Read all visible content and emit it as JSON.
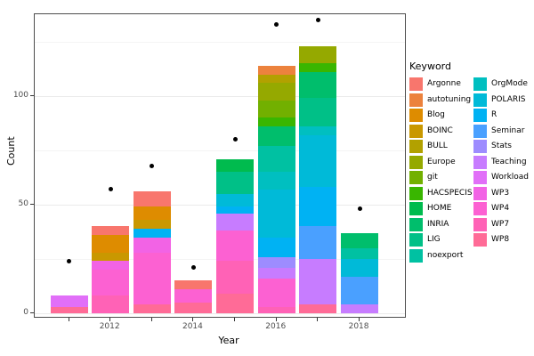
{
  "chart_data": {
    "type": "bar",
    "stacked": true,
    "title": "",
    "xlabel": "Year",
    "ylabel": "Count",
    "legend_title": "Keyword",
    "x_tick_labels": [
      "2012",
      "2014",
      "2016",
      "2018"
    ],
    "y_tick_labels": [
      "0",
      "50",
      "100"
    ],
    "y_ticks": [
      0,
      50,
      100
    ],
    "y_minor_ticks": [
      25,
      75,
      125
    ],
    "ylim": [
      0,
      138
    ],
    "grid": true,
    "legend_position": "right",
    "point_color": "#000000",
    "axis_text_color": "#4d4d4d",
    "panel_border_color": "#4d4d4d",
    "years": [
      2011,
      2012,
      2013,
      2014,
      2015,
      2016,
      2017,
      2018
    ],
    "keywords": [
      {
        "name": "Argonne",
        "color": "#F8766D"
      },
      {
        "name": "autotuning",
        "color": "#EC823D"
      },
      {
        "name": "Blog",
        "color": "#DE8C00"
      },
      {
        "name": "BOINC",
        "color": "#C99800"
      },
      {
        "name": "BULL",
        "color": "#B2A100"
      },
      {
        "name": "Europe",
        "color": "#95A900"
      },
      {
        "name": "git",
        "color": "#72B000"
      },
      {
        "name": "HACSPECIS",
        "color": "#39B600"
      },
      {
        "name": "HOME",
        "color": "#00BB4E"
      },
      {
        "name": "INRIA",
        "color": "#00BE6C"
      },
      {
        "name": "LIG",
        "color": "#00C087"
      },
      {
        "name": "noexport",
        "color": "#00C1A2"
      },
      {
        "name": "OrgMode",
        "color": "#00BFC0"
      },
      {
        "name": "POLARIS",
        "color": "#00BAD8"
      },
      {
        "name": "R",
        "color": "#00B2F3"
      },
      {
        "name": "Seminar",
        "color": "#4AA0FF"
      },
      {
        "name": "Stats",
        "color": "#9D8CFF"
      },
      {
        "name": "Teaching",
        "color": "#C77CFF"
      },
      {
        "name": "Workload",
        "color": "#E16FF8"
      },
      {
        "name": "WP3",
        "color": "#F263E5"
      },
      {
        "name": "WP4",
        "color": "#FC61D2"
      },
      {
        "name": "WP7",
        "color": "#FF62B6"
      },
      {
        "name": "WP8",
        "color": "#FF6B97"
      }
    ],
    "bars": [
      {
        "year": 2011,
        "total": 8,
        "segments": [
          {
            "keyword": "WP8",
            "value": 3
          },
          {
            "keyword": "Workload",
            "value": 5
          }
        ]
      },
      {
        "year": 2012,
        "total": 40,
        "segments": [
          {
            "keyword": "WP7",
            "value": 8
          },
          {
            "keyword": "WP4",
            "value": 12
          },
          {
            "keyword": "WP3",
            "value": 4
          },
          {
            "keyword": "BOINC",
            "value": 4
          },
          {
            "keyword": "Blog",
            "value": 8
          },
          {
            "keyword": "Argonne",
            "value": 4
          }
        ]
      },
      {
        "year": 2013,
        "total": 56,
        "segments": [
          {
            "keyword": "WP8",
            "value": 4
          },
          {
            "keyword": "WP4",
            "value": 24
          },
          {
            "keyword": "WP3",
            "value": 7
          },
          {
            "keyword": "R",
            "value": 4
          },
          {
            "keyword": "BOINC",
            "value": 4
          },
          {
            "keyword": "Blog",
            "value": 6
          },
          {
            "keyword": "Argonne",
            "value": 7
          }
        ]
      },
      {
        "year": 2014,
        "total": 15,
        "segments": [
          {
            "keyword": "WP8",
            "value": 5
          },
          {
            "keyword": "WP4",
            "value": 6
          },
          {
            "keyword": "Argonne",
            "value": 4
          }
        ]
      },
      {
        "year": 2015,
        "total": 71,
        "segments": [
          {
            "keyword": "WP8",
            "value": 9
          },
          {
            "keyword": "WP7",
            "value": 15
          },
          {
            "keyword": "WP4",
            "value": 14
          },
          {
            "keyword": "Teaching",
            "value": 8
          },
          {
            "keyword": "R",
            "value": 3
          },
          {
            "keyword": "POLARIS",
            "value": 6
          },
          {
            "keyword": "LIG",
            "value": 10
          },
          {
            "keyword": "HOME",
            "value": 6
          }
        ]
      },
      {
        "year": 2016,
        "total": 114,
        "segments": [
          {
            "keyword": "WP7",
            "value": 3
          },
          {
            "keyword": "WP4",
            "value": 13
          },
          {
            "keyword": "Teaching",
            "value": 5
          },
          {
            "keyword": "Stats",
            "value": 5
          },
          {
            "keyword": "R",
            "value": 9
          },
          {
            "keyword": "POLARIS",
            "value": 22
          },
          {
            "keyword": "OrgMode",
            "value": 8
          },
          {
            "keyword": "noexport",
            "value": 12
          },
          {
            "keyword": "INRIA",
            "value": 9
          },
          {
            "keyword": "HACSPECIS",
            "value": 4
          },
          {
            "keyword": "git",
            "value": 8
          },
          {
            "keyword": "Europe",
            "value": 8
          },
          {
            "keyword": "BULL",
            "value": 4
          },
          {
            "keyword": "autotuning",
            "value": 4
          }
        ]
      },
      {
        "year": 2017,
        "total": 123,
        "segments": [
          {
            "keyword": "WP8",
            "value": 4
          },
          {
            "keyword": "Teaching",
            "value": 21
          },
          {
            "keyword": "Seminar",
            "value": 15
          },
          {
            "keyword": "R",
            "value": 18
          },
          {
            "keyword": "POLARIS",
            "value": 24
          },
          {
            "keyword": "OrgMode",
            "value": 4
          },
          {
            "keyword": "LIG",
            "value": 13
          },
          {
            "keyword": "INRIA",
            "value": 12
          },
          {
            "keyword": "HACSPECIS",
            "value": 4
          },
          {
            "keyword": "Europe",
            "value": 8
          }
        ]
      },
      {
        "year": 2018,
        "total": 37,
        "segments": [
          {
            "keyword": "Teaching",
            "value": 4
          },
          {
            "keyword": "Seminar",
            "value": 13
          },
          {
            "keyword": "POLARIS",
            "value": 8
          },
          {
            "keyword": "noexport",
            "value": 5
          },
          {
            "keyword": "INRIA",
            "value": 7
          }
        ]
      }
    ],
    "points": [
      {
        "year": 2011,
        "value": 24
      },
      {
        "year": 2012,
        "value": 57
      },
      {
        "year": 2013,
        "value": 68
      },
      {
        "year": 2014,
        "value": 21
      },
      {
        "year": 2015,
        "value": 80
      },
      {
        "year": 2016,
        "value": 133
      },
      {
        "year": 2017,
        "value": 135
      },
      {
        "year": 2018,
        "value": 48
      }
    ]
  }
}
